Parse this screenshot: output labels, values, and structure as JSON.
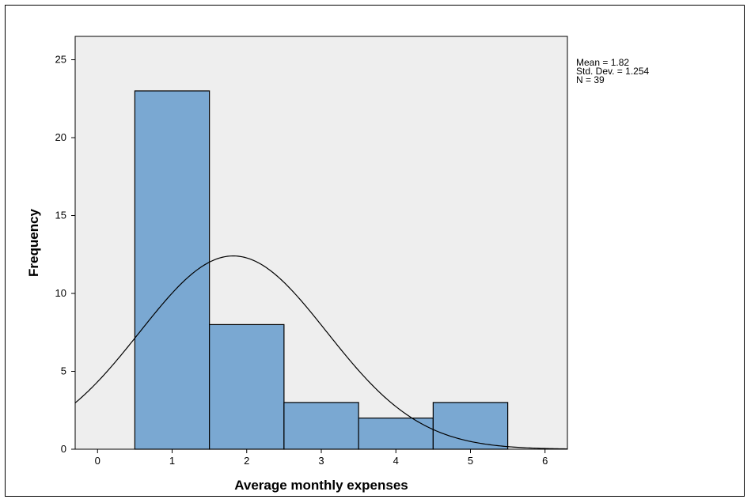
{
  "chart_data": {
    "type": "bar",
    "subtype": "histogram",
    "xlabel": "Average monthly expenses",
    "ylabel": "Frequency",
    "xlim": [
      -0.3,
      6.3
    ],
    "ylim": [
      0,
      26.5
    ],
    "x_ticks": [
      0,
      1,
      2,
      3,
      4,
      5,
      6
    ],
    "y_ticks": [
      0,
      5,
      10,
      15,
      20,
      25
    ],
    "bins": [
      {
        "x0": 0.5,
        "x1": 1.5,
        "count": 23
      },
      {
        "x0": 1.5,
        "x1": 2.5,
        "count": 8
      },
      {
        "x0": 2.5,
        "x1": 3.5,
        "count": 3
      },
      {
        "x0": 3.5,
        "x1": 4.5,
        "count": 2
      },
      {
        "x0": 4.5,
        "x1": 5.5,
        "count": 3
      }
    ],
    "normal_curve": {
      "mean": 1.82,
      "std": 1.254,
      "n": 39,
      "bin_width": 1
    },
    "stats": [
      "Mean = 1.82",
      "Std. Dev. = 1.254",
      "N = 39"
    ],
    "colors": {
      "bar_fill": "#7aa8d2",
      "bar_stroke": "#000000",
      "plot_bg": "#eeeeee",
      "curve": "#000000"
    },
    "grid": false
  }
}
